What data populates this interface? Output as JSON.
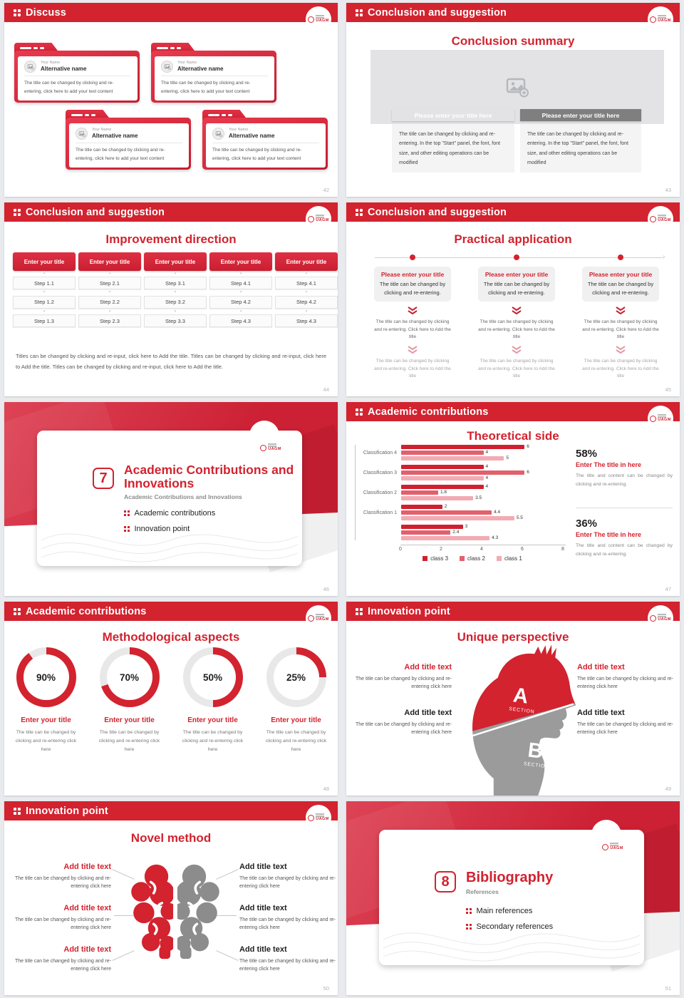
{
  "accent": "#d2232f",
  "logo": {
    "text": "UAGM"
  },
  "s42": {
    "header": "Discuss",
    "page": "42",
    "cards": [
      {
        "name_label": "Your Name",
        "title": "Alternative name",
        "body": "The title can be changed by clicking and re-entering, click here to add your text content"
      },
      {
        "name_label": "Your Name",
        "title": "Alternative name",
        "body": "The title can be changed by clicking and re-entering, click here to add your text content"
      },
      {
        "name_label": "Your Name",
        "title": "Alternative name",
        "body": "The title can be changed by clicking and re-entering, click here to add your text content"
      },
      {
        "name_label": "Your Name",
        "title": "Alternative name",
        "body": "The title can be changed by clicking and re-entering, click here to add your text content"
      }
    ]
  },
  "s43": {
    "header": "Conclusion and suggestion",
    "title": "Conclusion summary",
    "page": "43",
    "columns": [
      {
        "bar": "Please enter your title here",
        "bar_color": "#d2232f",
        "body": "The title can be changed by clicking and re-entering. In the top \"Start\" panel, the font, font size, and other editing operations can be modified"
      },
      {
        "bar": "Please enter your title here",
        "bar_color": "#7f7f7f",
        "body": "The title can be changed by clicking and re-entering. In the top \"Start\" panel, the font, font size, and other editing operations can be modified"
      }
    ]
  },
  "s44": {
    "header": "Conclusion and suggestion",
    "title": "Improvement direction",
    "page": "44",
    "columns": [
      {
        "title": "Enter your title",
        "steps": [
          "Step 1.1",
          "Step 1.2",
          "Step 1.3"
        ]
      },
      {
        "title": "Enter your title",
        "steps": [
          "Step 2.1",
          "Step 2.2",
          "Step 2.3"
        ]
      },
      {
        "title": "Enter your title",
        "steps": [
          "Step 3.1",
          "Step 3.2",
          "Step 3.3"
        ]
      },
      {
        "title": "Enter your title",
        "steps": [
          "Step 4.1",
          "Step 4.2",
          "Step 4.3"
        ]
      },
      {
        "title": "Enter your title",
        "steps": [
          "Step 4.1",
          "Step 4.2",
          "Step 4.3"
        ]
      }
    ],
    "footer": "Titles can be changed by clicking and re-input, click here to Add the title. Titles can be changed by clicking and re-input, click here to Add the title. Titles can be changed by clicking and re-input, click here to Add the title."
  },
  "s45": {
    "header": "Conclusion and suggestion",
    "title": "Practical application",
    "page": "45",
    "columns": [
      {
        "box_title": "Please enter your title",
        "box_body": "The title can be changed by clicking and re-entering.",
        "step1": "The title can be changed by clicking and re-entering. Click here to Add the title",
        "step2": "The title can be changed by clicking and re-entering. Click here to Add the title"
      },
      {
        "box_title": "Please enter your title",
        "box_body": "The title can be changed by clicking and re-entering.",
        "step1": "The title can be changed by clicking and re-entering. Click here to Add the title",
        "step2": "The title can be changed by clicking and re-entering. Click here to Add the title"
      },
      {
        "box_title": "Please enter your title",
        "box_body": "The title can be changed by clicking and re-entering.",
        "step1": "The title can be changed by clicking and re-entering. Click here to Add the title",
        "step2": "The title can be changed by clicking and re-entering. Click here to Add the title"
      }
    ]
  },
  "s46": {
    "number": "7",
    "title": "Academic Contributions and Innovations",
    "subtitle": "Academic Contributions and Innovations",
    "bullets": [
      "Academic contributions",
      "Innovation point"
    ],
    "page": "46"
  },
  "s47": {
    "header": "Academic contributions",
    "title": "Theoretical side",
    "page": "47",
    "stats": [
      {
        "pct": "58%",
        "title": "Enter The title in here",
        "body": "The title and content can be changed by clicking and re-entering."
      },
      {
        "pct": "36%",
        "title": "Enter The title in here",
        "body": "The title and content can be changed by clicking and re-entering."
      }
    ]
  },
  "chart_data": {
    "type": "bar",
    "orientation": "horizontal",
    "title": "Theoretical side",
    "categories": [
      "Classification 4",
      "Classification 3",
      "Classification 2",
      "Classification 1",
      ""
    ],
    "series": [
      {
        "name": "class 3",
        "color": "#d0202f",
        "values": [
          6,
          4,
          4,
          2,
          3
        ]
      },
      {
        "name": "class 2",
        "color": "#e2606c",
        "values": [
          4,
          6,
          1.8,
          4.4,
          2.4
        ]
      },
      {
        "name": "class 1",
        "color": "#f2abb3",
        "values": [
          5,
          4,
          3.5,
          5.5,
          4.3
        ]
      }
    ],
    "xlim": [
      0,
      8
    ],
    "xticks": [
      0,
      2,
      4,
      6,
      8
    ],
    "grid": false,
    "legend_position": "bottom"
  },
  "s48": {
    "header": "Academic contributions",
    "title": "Methodological aspects",
    "page": "48",
    "items": [
      {
        "value": 90,
        "label": "90%",
        "title": "Enter your title",
        "body": "The title can be changed by clicking and re-entering click here"
      },
      {
        "value": 70,
        "label": "70%",
        "title": "Enter your title",
        "body": "The title can be changed by clicking and re-entering click here"
      },
      {
        "value": 50,
        "label": "50%",
        "title": "Enter your title",
        "body": "The title can be changed by clicking and re-entering click here"
      },
      {
        "value": 25,
        "label": "25%",
        "title": "Enter your title",
        "body": "The title can be changed by clicking and re-entering click here"
      }
    ]
  },
  "s49": {
    "header": "Innovation point",
    "title": "Unique perspective",
    "page": "49",
    "head": {
      "a": "A",
      "b": "B",
      "section": "SECTION"
    },
    "left": [
      {
        "title": "Add title text",
        "body": "The title can be changed by clicking and re-entering click here"
      },
      {
        "title": "Add title text",
        "body": "The title can be changed by clicking and re-entering click here"
      }
    ],
    "right": [
      {
        "title": "Add title text",
        "body": "The title can be changed by clicking and re-entering click here"
      },
      {
        "title": "Add title text",
        "body": "The title can be changed by clicking and re-entering click here"
      }
    ]
  },
  "s50": {
    "header": "Innovation point",
    "title": "Novel method",
    "page": "50",
    "left": [
      {
        "title": "Add title text",
        "body": "The title can be changed by clicking and re-entering click here"
      },
      {
        "title": "Add title text",
        "body": "The title can be changed by clicking and re-entering click here"
      },
      {
        "title": "Add title text",
        "body": "The title can be changed by clicking and re-entering click here"
      }
    ],
    "right": [
      {
        "title": "Add title text",
        "body": "The title can be changed by clicking and re-entering click here"
      },
      {
        "title": "Add title text",
        "body": "The title can be changed by clicking and re-entering click here"
      },
      {
        "title": "Add title text",
        "body": "The title can be changed by clicking and re-entering click here"
      }
    ]
  },
  "s51": {
    "number": "8",
    "title": "Bibliography",
    "subtitle": "References",
    "bullets": [
      "Main references",
      "Secondary references"
    ],
    "page": "51"
  }
}
